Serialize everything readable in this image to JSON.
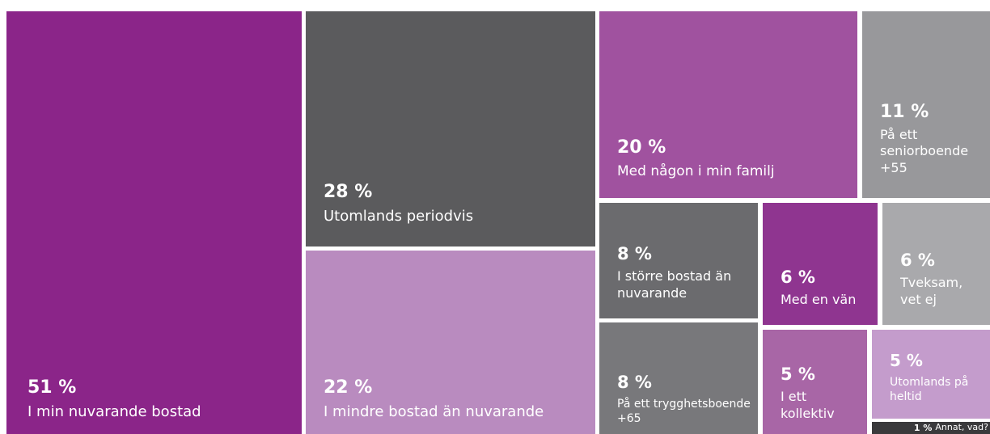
{
  "chart_data": {
    "type": "treemap",
    "categories": [
      "I min nuvarande bostad",
      "Utomlands periodvis",
      "I mindre bostad än nuvarande",
      "Med någon i min familj",
      "På ett seniorboende +55",
      "I större bostad än nuvarande",
      "Med en vän",
      "Tveksam, vet ej",
      "På ett trygghetsboende +65",
      "I ett kollektiv",
      "Utomlands på heltid",
      "Annat, vad?"
    ],
    "values": [
      51,
      28,
      22,
      20,
      11,
      8,
      6,
      6,
      8,
      5,
      5,
      1
    ],
    "value_labels": [
      "51 %",
      "28 %",
      "22 %",
      "20 %",
      "11 %",
      "8 %",
      "6 %",
      "6 %",
      "8 %",
      "5 %",
      "5 %",
      "1 %"
    ],
    "colors": [
      "#8b2589",
      "#5b5b5d",
      "#b98bbf",
      "#a0529f",
      "#98989b",
      "#6b6b6e",
      "#8f3590",
      "#a9a9ac",
      "#78787b",
      "#a866a6",
      "#c49ccc",
      "#3a3a3c"
    ]
  }
}
